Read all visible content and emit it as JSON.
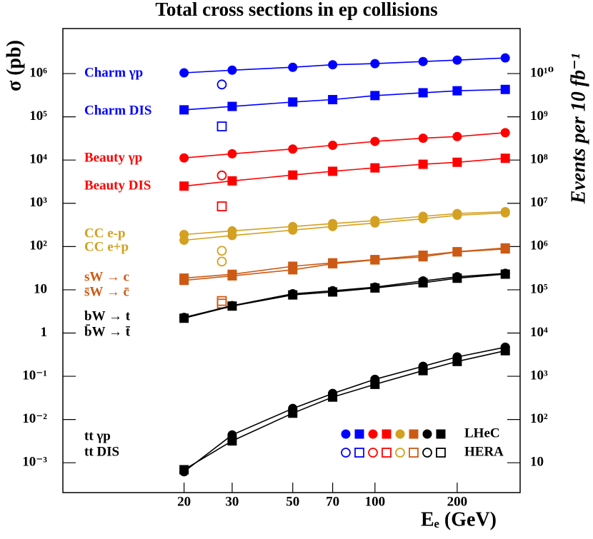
{
  "chart_data": {
    "type": "line",
    "title": "Total cross sections in ep collisions",
    "x_label": "Eₑ (GeV)",
    "y_label": "σ (pb)",
    "y2_label": "Events per 10 fb⁻¹",
    "log_x": true,
    "log_y": true,
    "xlim": [
      7.2,
      340
    ],
    "xticks": [
      20,
      30,
      50,
      70,
      100,
      200
    ],
    "ylim": [
      0.000204,
      11000000
    ],
    "yticks": [
      {
        "value": 0.001,
        "label": "10⁻³"
      },
      {
        "value": 0.01,
        "label": "10⁻²"
      },
      {
        "value": 0.1,
        "label": "10⁻¹"
      },
      1,
      {
        "value": 10,
        "label": "10"
      },
      {
        "value": 100,
        "label": "10²"
      },
      {
        "value": 1000,
        "label": "10³"
      },
      {
        "value": 10000,
        "label": "10⁴"
      },
      {
        "value": 100000,
        "label": "10⁵"
      },
      {
        "value": 1000000,
        "label": "10⁶"
      }
    ],
    "y2lim": [
      2.04,
      110000000000
    ],
    "y2ticks": [
      10,
      {
        "value": 100,
        "label": "10²"
      },
      {
        "value": 1000,
        "label": "10³"
      },
      {
        "value": 10000,
        "label": "10⁴"
      },
      {
        "value": 100000,
        "label": "10⁵"
      },
      {
        "value": 1000000,
        "label": "10⁶"
      },
      {
        "value": 10000000,
        "label": "10⁷"
      },
      {
        "value": 100000000,
        "label": "10⁸"
      },
      {
        "value": 1000000000,
        "label": "10⁹"
      },
      {
        "value": 10000000000,
        "label": "10¹⁰"
      }
    ],
    "x": [
      20,
      30,
      50,
      70,
      100,
      150,
      200,
      300
    ],
    "hera_x": 27.5,
    "legend_labels": [
      "LHeC",
      "HERA"
    ],
    "series": [
      {
        "name": "Charm γp",
        "color": "#0000ff",
        "marker": "circle",
        "values": [
          1040000,
          1200000,
          1400000,
          1600000,
          1700000,
          1900000,
          2050000,
          2300000
        ],
        "hera": 560000
      },
      {
        "name": "Charm DIS",
        "color": "#0000ff",
        "marker": "square",
        "values": [
          145000,
          174000,
          220000,
          250000,
          310000,
          360000,
          400000,
          430000
        ],
        "hera": 60000
      },
      {
        "name": "Beauty γp",
        "color": "#ff0000",
        "marker": "circle",
        "values": [
          11200,
          14000,
          18000,
          22000,
          27000,
          32000,
          35000,
          43000
        ],
        "hera": 4400
      },
      {
        "name": "Beauty DIS",
        "color": "#ff0000",
        "marker": "square",
        "values": [
          2500,
          3300,
          4500,
          5500,
          6600,
          8000,
          8900,
          11000
        ],
        "hera": 850
      },
      {
        "name": "CC e-p",
        "color": "#d4a020",
        "marker": "circle",
        "values": [
          190,
          230,
          290,
          340,
          400,
          500,
          580,
          640
        ],
        "hera": 80
      },
      {
        "name": "CC e+p",
        "color": "#d4a020",
        "marker": "circle",
        "values": [
          140,
          180,
          240,
          290,
          350,
          440,
          530,
          600
        ],
        "hera": 45
      },
      {
        "name": "sW → c",
        "color": "#cc5a14",
        "marker": "square",
        "values": [
          18.6,
          22.8,
          35,
          42,
          50,
          63,
          76,
          93
        ],
        "hera": 5.5
      },
      {
        "name": "s̄W → c̄",
        "color": "#cc5a14",
        "marker": "square",
        "values": [
          16.5,
          21,
          29,
          40,
          49,
          58,
          75,
          88
        ],
        "hera": 4.8
      },
      {
        "name": "bW → t",
        "color": "#000000",
        "marker": "circle",
        "values": [
          2.3,
          4.3,
          8.1,
          9.5,
          11.5,
          16,
          20,
          24
        ]
      },
      {
        "name": "b̄W → t̄",
        "color": "#000000",
        "marker": "square",
        "values": [
          2.2,
          4.2,
          7.6,
          8.9,
          11,
          14.5,
          18.5,
          23
        ]
      },
      {
        "name": "tt  γp",
        "color": "#000000",
        "marker": "circle",
        "values": [
          0.00062,
          0.0044,
          0.018,
          0.04,
          0.085,
          0.17,
          0.28,
          0.47
        ]
      },
      {
        "name": "tt  DIS",
        "color": "#000000",
        "marker": "square",
        "values": [
          0.00069,
          0.0032,
          0.014,
          0.033,
          0.065,
          0.135,
          0.22,
          0.39
        ]
      }
    ]
  }
}
